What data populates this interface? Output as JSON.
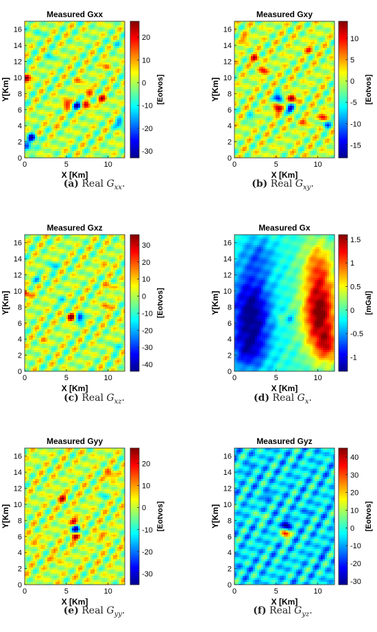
{
  "figure": {
    "colormap": [
      "#00008f",
      "#0000ff",
      "#0080ff",
      "#00ffff",
      "#80ff80",
      "#ffff00",
      "#ff8000",
      "#ff0000",
      "#800000"
    ],
    "panels": [
      {
        "id": "a",
        "caption_label": "(a)",
        "caption_text": "Real",
        "caption_symbol": "G",
        "caption_sub": "xx",
        "chart_data": {
          "type": "heatmap",
          "title": "Measured Gxx",
          "xlabel": "X [Km]",
          "ylabel": "Y[Km]",
          "xlim": [
            0,
            12
          ],
          "ylim": [
            0,
            17
          ],
          "xticks": [
            0,
            5,
            10
          ],
          "yticks": [
            0,
            2,
            4,
            6,
            8,
            10,
            12,
            14,
            16
          ],
          "colorbar": {
            "label": "[Eotvos]",
            "range": [
              -33,
              27
            ],
            "ticks": [
              20,
              10,
              0,
              -10,
              -20,
              -30
            ]
          },
          "features": [
            {
              "x": 5.0,
              "y": 6.8,
              "value": 22
            },
            {
              "x": 6.3,
              "y": 6.5,
              "value": -25
            },
            {
              "x": 7.5,
              "y": 6.4,
              "value": 20
            },
            {
              "x": 7.6,
              "y": 8.4,
              "value": 15
            },
            {
              "x": 9.3,
              "y": 7.3,
              "value": 18
            },
            {
              "x": 6.5,
              "y": 9.5,
              "value": 10
            },
            {
              "x": 0.2,
              "y": 9.8,
              "value": 25
            },
            {
              "x": 0.9,
              "y": 2.4,
              "value": -30
            },
            {
              "x": 0.4,
              "y": 1.2,
              "value": -20
            },
            {
              "x": 11.5,
              "y": 4.2,
              "value": -20
            },
            {
              "x": 3.2,
              "y": 12.5,
              "value": -10
            },
            {
              "x": 1.6,
              "y": 15.5,
              "value": -8
            },
            {
              "x": 10.8,
              "y": 14.2,
              "value": -8
            },
            {
              "x": 9.8,
              "y": 11.5,
              "value": 12
            },
            {
              "x": 3.5,
              "y": 4.5,
              "value": 8
            }
          ]
        }
      },
      {
        "id": "b",
        "caption_label": "(b)",
        "caption_text": "Real",
        "caption_symbol": "G",
        "caption_sub": "xy",
        "chart_data": {
          "type": "heatmap",
          "title": "Measured Gxy",
          "xlabel": "X [Km]",
          "ylabel": "Y[Km]",
          "xlim": [
            0,
            12
          ],
          "ylim": [
            0,
            17
          ],
          "xticks": [
            0,
            5,
            10
          ],
          "yticks": [
            0,
            2,
            4,
            6,
            8,
            10,
            12,
            14,
            16
          ],
          "colorbar": {
            "label": "[Eotvos]",
            "range": [
              -18,
              14
            ],
            "ticks": [
              10,
              5,
              0,
              -5,
              -10,
              -15
            ]
          },
          "features": [
            {
              "x": 5.2,
              "y": 6.1,
              "value": 13
            },
            {
              "x": 6.9,
              "y": 7.4,
              "value": 13
            },
            {
              "x": 5.3,
              "y": 7.5,
              "value": -15
            },
            {
              "x": 6.8,
              "y": 6.1,
              "value": -16
            },
            {
              "x": 3.5,
              "y": 10.8,
              "value": 9
            },
            {
              "x": 2.5,
              "y": 12.3,
              "value": 9
            },
            {
              "x": 10.6,
              "y": 5.1,
              "value": 10
            },
            {
              "x": 11.0,
              "y": 4.2,
              "value": -10
            },
            {
              "x": 8.3,
              "y": 4.5,
              "value": 6
            },
            {
              "x": 2.0,
              "y": 5.0,
              "value": -6
            },
            {
              "x": 9.0,
              "y": 13.5,
              "value": 7
            },
            {
              "x": 1.2,
              "y": 14.8,
              "value": 6
            }
          ]
        }
      },
      {
        "id": "c",
        "caption_label": "(c)",
        "caption_text": "Real",
        "caption_symbol": "G",
        "caption_sub": "xz",
        "chart_data": {
          "type": "heatmap",
          "title": "Measured Gxz",
          "xlabel": "X [Km]",
          "ylabel": "Y[Km]",
          "xlim": [
            0,
            12
          ],
          "ylim": [
            0,
            17
          ],
          "xticks": [
            0,
            5,
            10
          ],
          "yticks": [
            0,
            2,
            4,
            6,
            8,
            10,
            12,
            14,
            16
          ],
          "colorbar": {
            "label": "[Eotvos]",
            "range": [
              -44,
              36
            ],
            "ticks": [
              30,
              20,
              10,
              0,
              -10,
              -20,
              -30,
              -40
            ]
          },
          "features": [
            {
              "x": 5.6,
              "y": 6.7,
              "value": 34
            },
            {
              "x": 6.6,
              "y": 6.6,
              "value": -35
            },
            {
              "x": 9.8,
              "y": 8.0,
              "value": 18
            },
            {
              "x": 10.2,
              "y": 10.5,
              "value": 15
            },
            {
              "x": 9.6,
              "y": 13.0,
              "value": 14
            },
            {
              "x": 0.2,
              "y": 9.6,
              "value": 28
            },
            {
              "x": 3.3,
              "y": 13.1,
              "value": -20
            },
            {
              "x": 1.6,
              "y": 11.5,
              "value": -15
            },
            {
              "x": 4.6,
              "y": 8.7,
              "value": -15
            },
            {
              "x": 10.8,
              "y": 3.0,
              "value": -12
            },
            {
              "x": 2.3,
              "y": 4.0,
              "value": 10
            }
          ]
        }
      },
      {
        "id": "d",
        "caption_label": "(d)",
        "caption_text": "Real",
        "caption_symbol": "G",
        "caption_sub": "x",
        "chart_data": {
          "type": "heatmap",
          "title": "Measured Gx",
          "xlabel": "X [Km]",
          "ylabel": "Y[Km]",
          "xlim": [
            0,
            12
          ],
          "ylim": [
            0,
            17
          ],
          "xticks": [
            0,
            5,
            10
          ],
          "yticks": [
            0,
            2,
            4,
            6,
            8,
            10,
            12,
            14,
            16
          ],
          "colorbar": {
            "label": "[mGal]",
            "range": [
              -1.3,
              1.6
            ],
            "ticks": [
              1.5,
              1,
              0.5,
              0,
              -0.5,
              -1
            ]
          },
          "background": -0.1,
          "features": [
            {
              "x": 2.0,
              "y": 7.0,
              "value": -1.35,
              "sx": 2.3,
              "sy": 5.5
            },
            {
              "x": 1.5,
              "y": 2.5,
              "value": -0.55,
              "sx": 2.0,
              "sy": 2.2
            },
            {
              "x": 10.2,
              "y": 7.3,
              "value": 1.65,
              "sx": 2.0,
              "sy": 5.0
            },
            {
              "x": 11.3,
              "y": 3.0,
              "value": 0.7,
              "sx": 1.4,
              "sy": 2.0
            },
            {
              "x": 10.0,
              "y": 13.5,
              "value": 0.6,
              "sx": 1.8,
              "sy": 3.0
            },
            {
              "x": 5.4,
              "y": 6.7,
              "value": 0.35,
              "sx": 0.45,
              "sy": 0.45
            },
            {
              "x": 6.7,
              "y": 6.6,
              "value": -0.55,
              "sx": 0.45,
              "sy": 0.45
            },
            {
              "x": 3.0,
              "y": 14.5,
              "value": -0.5,
              "sx": 2.0,
              "sy": 2.5
            }
          ]
        }
      },
      {
        "id": "e",
        "caption_label": "(e)",
        "caption_text": "Real",
        "caption_symbol": "G",
        "caption_sub": "yy",
        "chart_data": {
          "type": "heatmap",
          "title": "Measured Gyy",
          "xlabel": "X [Km]",
          "ylabel": "Y[Km]",
          "xlim": [
            0,
            12
          ],
          "ylim": [
            0,
            17
          ],
          "xticks": [
            0,
            5,
            10
          ],
          "yticks": [
            0,
            2,
            4,
            6,
            8,
            10,
            12,
            14,
            16
          ],
          "colorbar": {
            "label": "[Eotvos]",
            "range": [
              -35,
              27
            ],
            "ticks": [
              20,
              10,
              0,
              -10,
              -20,
              -30
            ]
          },
          "features": [
            {
              "x": 6.0,
              "y": 7.9,
              "value": 24
            },
            {
              "x": 6.2,
              "y": 6.9,
              "value": -33
            },
            {
              "x": 6.0,
              "y": 6.0,
              "value": 20
            },
            {
              "x": 4.5,
              "y": 10.8,
              "value": 18
            },
            {
              "x": 10.3,
              "y": 13.6,
              "value": 18
            },
            {
              "x": 9.2,
              "y": 6.0,
              "value": 15
            },
            {
              "x": 1.2,
              "y": 5.5,
              "value": 12
            },
            {
              "x": 3.8,
              "y": 3.3,
              "value": 10
            },
            {
              "x": 9.5,
              "y": 11.0,
              "value": -10
            }
          ]
        }
      },
      {
        "id": "f",
        "caption_label": "(f)",
        "caption_text": "Real",
        "caption_symbol": "G",
        "caption_sub": "yz",
        "chart_data": {
          "type": "heatmap",
          "title": "Measured Gyz",
          "xlabel": "X [Km]",
          "ylabel": "Y[Km]",
          "xlim": [
            0,
            12
          ],
          "ylim": [
            0,
            17
          ],
          "xticks": [
            0,
            5,
            10
          ],
          "yticks": [
            0,
            2,
            4,
            6,
            8,
            10,
            12,
            14,
            16
          ],
          "colorbar": {
            "label": "[Eotvos]",
            "range": [
              -32,
              45
            ],
            "ticks": [
              40,
              30,
              20,
              10,
              0,
              -10,
              -20,
              -30
            ]
          },
          "background": -5,
          "features": [
            {
              "x": 6.2,
              "y": 7.4,
              "value": -32
            },
            {
              "x": 6.1,
              "y": 6.3,
              "value": 40
            },
            {
              "x": 4.0,
              "y": 11.0,
              "value": -15
            },
            {
              "x": 8.5,
              "y": 9.0,
              "value": -12
            },
            {
              "x": 2.0,
              "y": 14.5,
              "value": -12
            },
            {
              "x": 10.5,
              "y": 4.0,
              "value": -12
            },
            {
              "x": 1.0,
              "y": 2.0,
              "value": -10
            },
            {
              "x": 3.0,
              "y": 8.5,
              "value": 8
            }
          ]
        }
      }
    ]
  }
}
